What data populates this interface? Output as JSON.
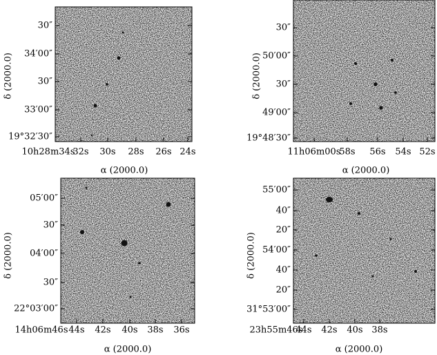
{
  "panels": [
    {
      "y_ticks": [
        "30″",
        "34′00″",
        "30″",
        "33′00″",
        "19°32′30″"
      ],
      "x_ticks": [
        "10h28m34s",
        "32s",
        "30s",
        "28s",
        "26s",
        "24s"
      ],
      "x_label": "α (2000.0)",
      "y_label": "δ (2000.0)"
    },
    {
      "y_ticks": [
        "30″",
        "50′00″",
        "30″",
        "49′00″",
        "19°48′30″"
      ],
      "x_ticks": [
        "11h06m00s",
        "58s",
        "56s",
        "54s",
        "52s"
      ],
      "x_label": "α (2000.0)",
      "y_label": "δ (2000.0)"
    },
    {
      "y_ticks": [
        "05′00″",
        "30″",
        "04′00″",
        "30″",
        "22°03′00″"
      ],
      "x_ticks": [
        "14h06m46s",
        "44s",
        "42s",
        "40s",
        "38s",
        "36s"
      ],
      "x_label": "α (2000.0)",
      "y_label": "δ (2000.0)"
    },
    {
      "y_ticks": [
        "55′00″",
        "40″",
        "20″",
        "54′00″",
        "40″",
        "20″",
        "31°53′00″"
      ],
      "x_ticks": [
        "23h55m46s",
        "44s",
        "42s",
        "40s",
        "38s"
      ],
      "x_label": "α (2000.0)",
      "y_label": "δ (2000.0)"
    }
  ]
}
